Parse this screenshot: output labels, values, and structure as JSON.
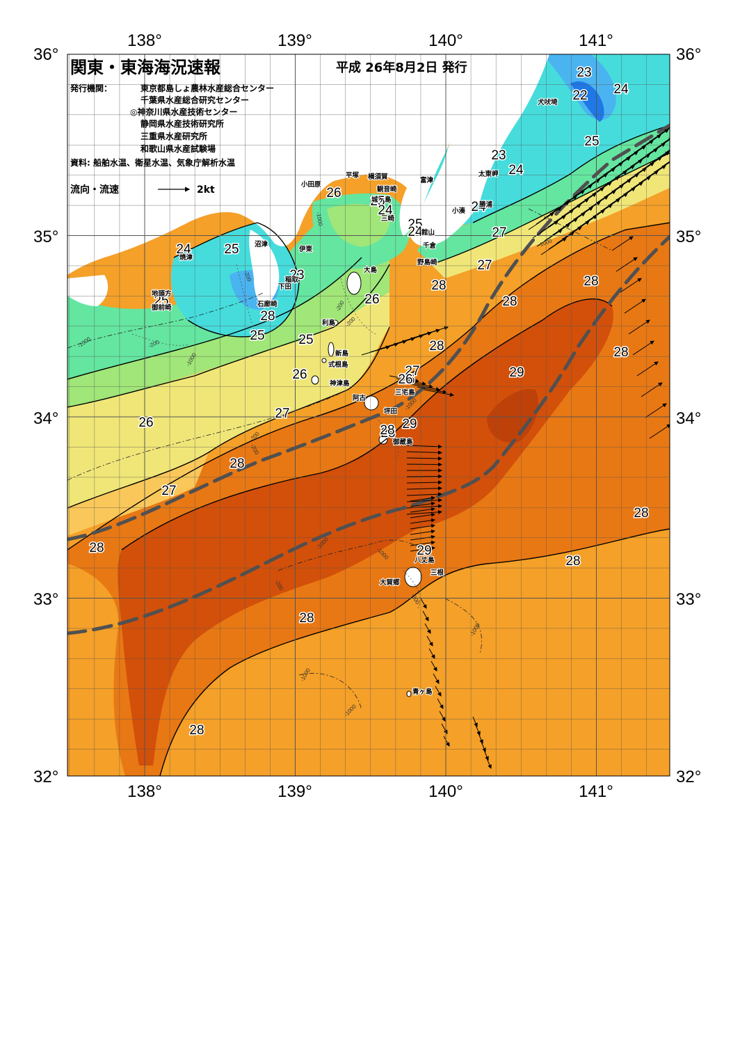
{
  "title": "関東・東海海況速報",
  "issue_date": "平成 26年8月2日 発行",
  "publishers_label": "発行機関：",
  "publishers": [
    "東京都島しょ農林水産総合センター",
    "千葉県水産総合研究センター",
    "◎神奈川県水産技術センター",
    "静岡県水産技術研究所",
    "三重県水産研究所",
    "和歌山県水産試験場"
  ],
  "sources": "資料: 船舶水温、衛星水温、気象庁解析水温",
  "legend": {
    "label": "流向・流速",
    "scale_label": "2kt"
  },
  "axes": {
    "lon_ticks": [
      "138°",
      "139°",
      "140°",
      "141°"
    ],
    "lat_ticks": [
      "36°",
      "35°",
      "34°",
      "33°",
      "32°"
    ]
  },
  "colors": {
    "c22": "#1e78e6",
    "c23": "#4ab4f0",
    "c24": "#46dcdc",
    "c25": "#64e6a0",
    "c26": "#a0e678",
    "c27": "#f0e678",
    "c27b": "#fac85a",
    "c28": "#f5a028",
    "c28b": "#e87814",
    "c29": "#d2500a",
    "c29b": "#be410a",
    "land": "#ffffff",
    "kuroshio_axis": "#505050"
  },
  "temp_labels": [
    "23",
    "22",
    "24",
    "25",
    "23",
    "24",
    "24",
    "26",
    "25",
    "24",
    "25",
    "24",
    "27",
    "27",
    "28",
    "28",
    "28",
    "24",
    "25",
    "25",
    "23",
    "26",
    "25",
    "25",
    "26",
    "26",
    "28",
    "27",
    "26",
    "29",
    "28",
    "28",
    "27",
    "26",
    "28",
    "29",
    "28",
    "27",
    "28",
    "28",
    "28",
    "29",
    "28",
    "28",
    "28"
  ],
  "place_labels": [
    "犬吠埼",
    "太東岬",
    "勝浦",
    "小湊",
    "富津",
    "観音崎",
    "横須賀",
    "平塚",
    "小田原",
    "城ヶ島",
    "三崎",
    "館山",
    "千倉",
    "野島崎",
    "沼津",
    "焼津",
    "伊東",
    "稲取",
    "下田",
    "石廊崎",
    "御前崎",
    "地頭方",
    "大島",
    "利島",
    "新島",
    "式根島",
    "神津島",
    "三宅島",
    "阿古",
    "坪田",
    "御蔵島",
    "八丈島",
    "三根",
    "大賀郷",
    "青ヶ島"
  ],
  "depth_labels": [
    "-1000",
    "-200",
    "-1000",
    "-200",
    "-200",
    "-1000",
    "-1000",
    "-200",
    "-1000",
    "-1000",
    "-1000",
    "-200",
    "-200",
    "-1000",
    "-1000",
    "-1000",
    "-200",
    "-200"
  ]
}
